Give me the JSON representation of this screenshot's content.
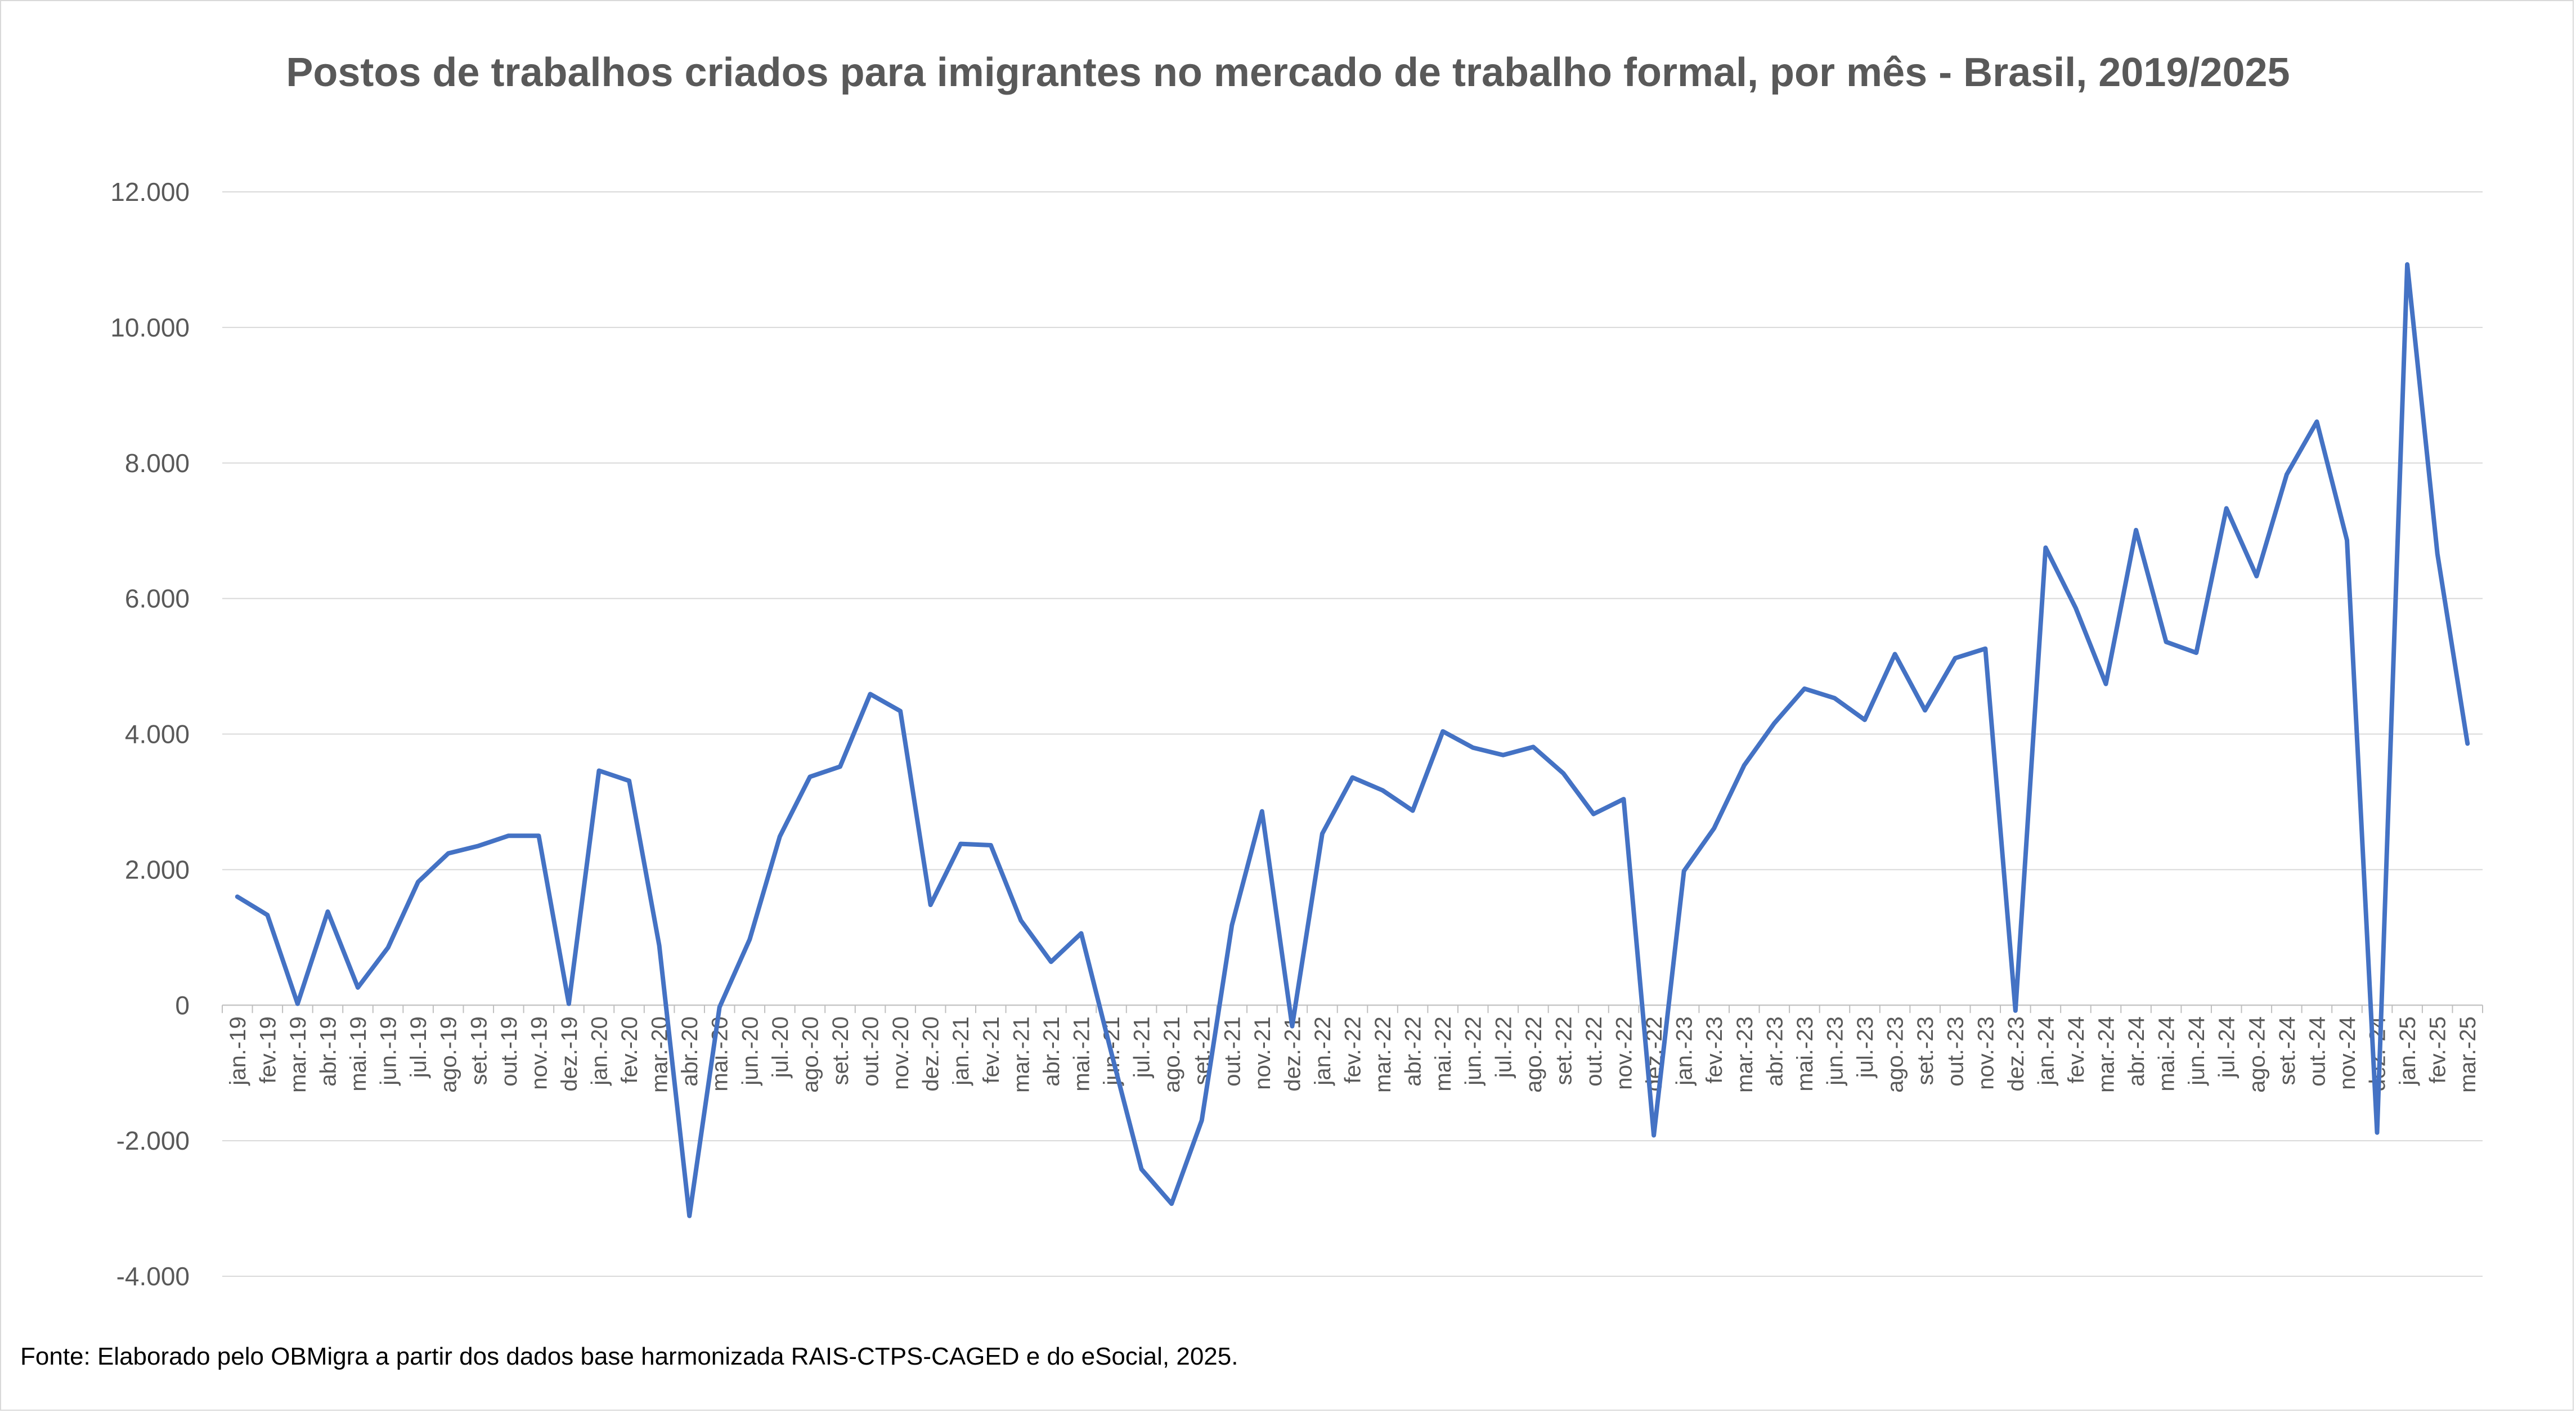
{
  "chart_data": {
    "type": "line",
    "title": "Postos de trabalhos criados para imigrantes no mercado de trabalho formal, por mês - Brasil, 2019/2025",
    "xlabel": "",
    "ylabel": "",
    "ylim": [
      -4000,
      12000
    ],
    "yticks": [
      12000,
      10000,
      8000,
      6000,
      4000,
      2000,
      0,
      -2000,
      -4000
    ],
    "ytick_labels": [
      "12.000",
      "10.000",
      "8.000",
      "6.000",
      "4.000",
      "2.000",
      "0",
      "-2.000",
      "-4.000"
    ],
    "grid": true,
    "legend": "none",
    "series_color": "#4472C4",
    "categories": [
      "jan.-19",
      "fev.-19",
      "mar.-19",
      "abr.-19",
      "mai.-19",
      "jun.-19",
      "jul.-19",
      "ago.-19",
      "set.-19",
      "out.-19",
      "nov.-19",
      "dez.-19",
      "jan.-20",
      "fev.-20",
      "mar.-20",
      "abr.-20",
      "mai.-20",
      "jun.-20",
      "jul.-20",
      "ago.-20",
      "set.-20",
      "out.-20",
      "nov.-20",
      "dez.-20",
      "jan.-21",
      "fev.-21",
      "mar.-21",
      "abr.-21",
      "mai.-21",
      "jun.-21",
      "jul.-21",
      "ago.-21",
      "set.-21",
      "out.-21",
      "nov.-21",
      "dez.-21",
      "jan.-22",
      "fev.-22",
      "mar.-22",
      "abr.-22",
      "mai.-22",
      "jun.-22",
      "jul.-22",
      "ago.-22",
      "set.-22",
      "out.-22",
      "nov.-22",
      "dez.-22",
      "jan.-23",
      "fev.-23",
      "mar.-23",
      "abr.-23",
      "mai.-23",
      "jun.-23",
      "jul.-23",
      "ago.-23",
      "set.-23",
      "out.-23",
      "nov.-23",
      "dez.-23",
      "jan.-24",
      "fev.-24",
      "mar.-24",
      "abr.-24",
      "mai.-24",
      "jun.-24",
      "jul.-24",
      "ago.-24",
      "set.-24",
      "out.-24",
      "nov.-24",
      "dez.-24",
      "jan.-25",
      "fev.-25",
      "mar.-25"
    ],
    "series": [
      {
        "name": "Postos de trabalho",
        "values": [
          1600,
          1330,
          20,
          1380,
          260,
          850,
          1820,
          2240,
          2350,
          2500,
          2500,
          20,
          3460,
          3310,
          880,
          -3110,
          -30,
          970,
          2490,
          3370,
          3520,
          4590,
          4340,
          1480,
          2380,
          2360,
          1250,
          640,
          1060,
          -700,
          -2420,
          -2930,
          -1700,
          1180,
          2860,
          -310,
          2530,
          3360,
          3170,
          2870,
          4040,
          3800,
          3690,
          3810,
          3420,
          2820,
          3040,
          -1920,
          1980,
          2610,
          3540,
          4160,
          4670,
          4530,
          4210,
          5180,
          4350,
          5120,
          5260,
          -80,
          6750,
          5860,
          4740,
          7010,
          5360,
          5200,
          7330,
          6330,
          7830,
          8610,
          6860,
          -1880,
          10930,
          6660,
          3860
        ]
      }
    ]
  },
  "source_note": "Fonte: Elaborado pelo OBMigra a partir dos dados base harmonizada RAIS-CTPS-CAGED e do eSocial, 2025."
}
